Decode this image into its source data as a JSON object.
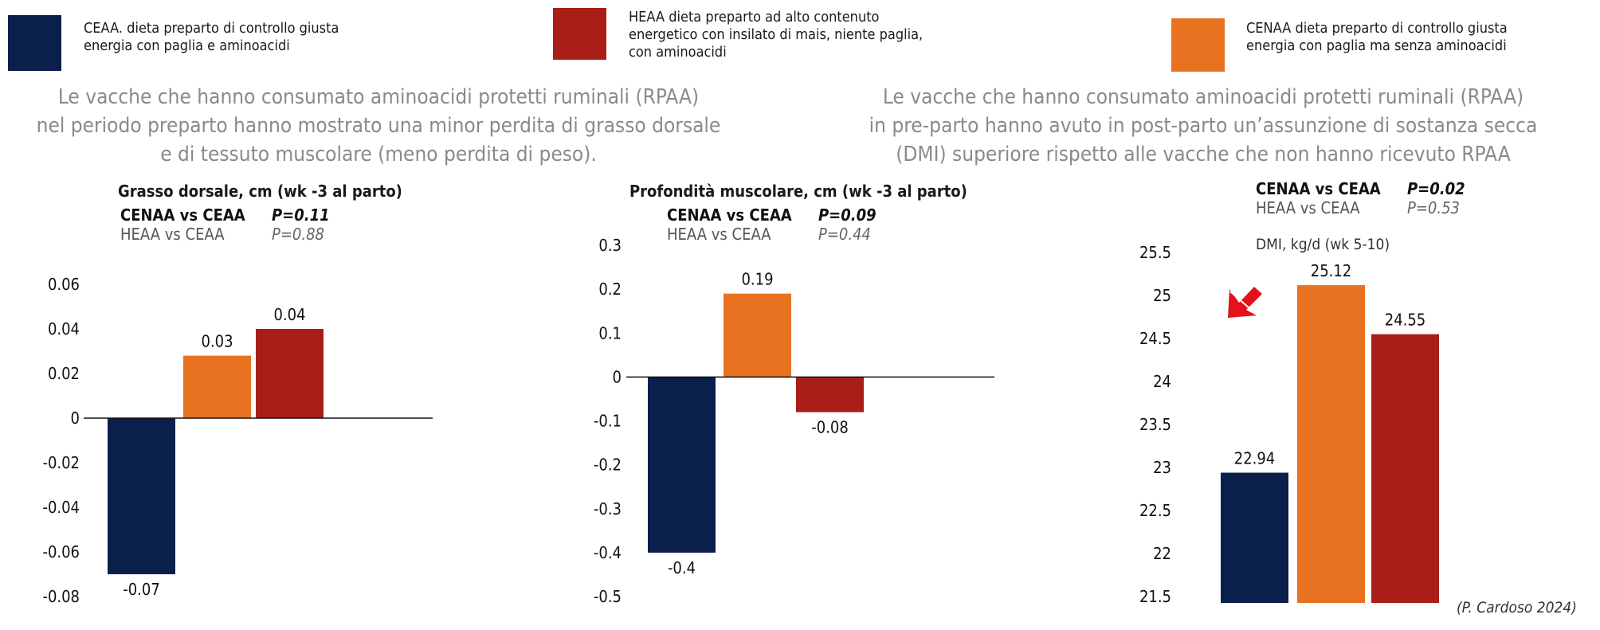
{
  "colors": {
    "navy": "#0b1f4d",
    "orange": "#e8721f",
    "red": "#a91e16"
  },
  "legend": [
    {
      "key": "CEAA",
      "text_line1": "CEAA. dieta preparto di controllo giusta",
      "text_line2": "energia con paglia e aminoacidi",
      "text_line3": "",
      "color": "#0b1f4d"
    },
    {
      "key": "HEAA",
      "text_line1": "HEAA dieta preparto ad alto contenuto",
      "text_line2": "energetico con insilato di mais, niente paglia,",
      "text_line3": "con aminoacidi",
      "color": "#a91e16"
    },
    {
      "key": "CENAA",
      "text_line1": "CENAA dieta preparto di controllo giusta",
      "text_line2": "energia con paglia ma senza aminoacidi",
      "text_line3": "",
      "color": "#e8721f"
    }
  ],
  "headlines": {
    "left": {
      "line1": "Le vacche che hanno consumato aminoacidi protetti ruminali (RPAA)",
      "line2": "nel periodo preparto hanno mostrato una minor perdita di grasso dorsale",
      "line3": "e di tessuto muscolare (meno perdita di peso)."
    },
    "right": {
      "line1": "Le vacche che hanno consumato aminoacidi protetti ruminali (RPAA)",
      "line2": "in pre-parto hanno avuto in post-parto un’assunzione di sostanza secca",
      "line3": "(DMI) superiore rispetto alle vacche che non hanno ricevuto RPAA"
    }
  },
  "chart_data": [
    {
      "type": "bar",
      "title": "Grasso dorsale, cm (wk -3 al parto)",
      "stats": [
        {
          "comparison": "CENAA vs CEAA",
          "p": "P=0.11",
          "significant": true
        },
        {
          "comparison": "HEAA vs CEAA",
          "p": "P=0.88",
          "significant": false
        }
      ],
      "categories": [
        "CEAA",
        "CENAA",
        "HEAA"
      ],
      "values": [
        -0.07,
        0.028,
        0.04
      ],
      "labels": [
        "-0.07",
        "0.03",
        "0.04"
      ],
      "colors": [
        "#0b1f4d",
        "#e8721f",
        "#a91e16"
      ],
      "ylim": [
        -0.08,
        0.06
      ],
      "ticks": [
        0.06,
        0.04,
        0.02,
        0,
        -0.02,
        -0.04,
        -0.06,
        -0.08
      ],
      "tick_labels": [
        "0.06",
        "0.04",
        "0.02",
        "0",
        "-0.02",
        "-0.04",
        "-0.06",
        "-0.08"
      ]
    },
    {
      "type": "bar",
      "title": "Profondità muscolare, cm (wk -3 al parto)",
      "stats": [
        {
          "comparison": "CENAA vs CEAA",
          "p": "P=0.09",
          "significant": true
        },
        {
          "comparison": "HEAA vs CEAA",
          "p": "P=0.44",
          "significant": false
        }
      ],
      "categories": [
        "CEAA",
        "CENAA",
        "HEAA"
      ],
      "values": [
        -0.4,
        0.19,
        -0.08
      ],
      "labels": [
        "-0.4",
        "0.19",
        "-0.08"
      ],
      "colors": [
        "#0b1f4d",
        "#e8721f",
        "#a91e16"
      ],
      "ylim": [
        -0.5,
        0.3
      ],
      "ticks": [
        0.3,
        0.2,
        0.1,
        0,
        -0.1,
        -0.2,
        -0.3,
        -0.4,
        -0.5
      ],
      "tick_labels": [
        "0.3",
        "0.2",
        "0.1",
        "0",
        "-0.1",
        "-0.2",
        "-0.3",
        "-0.4",
        "-0.5"
      ]
    },
    {
      "type": "bar",
      "title": "",
      "ylabel": "DMI, kg/d (wk 5-10)",
      "stats": [
        {
          "comparison": "CENAA vs CEAA",
          "p": "P=0.02",
          "significant": true
        },
        {
          "comparison": "HEAA vs CEAA",
          "p": "P=0.53",
          "significant": false
        }
      ],
      "categories": [
        "CEAA",
        "CENAA",
        "HEAA"
      ],
      "values": [
        22.94,
        25.12,
        24.55
      ],
      "labels": [
        "22.94",
        "25.12",
        "24.55"
      ],
      "colors": [
        "#0b1f4d",
        "#e8721f",
        "#a91e16"
      ],
      "ylim": [
        21.5,
        25.5
      ],
      "ticks": [
        25.5,
        25,
        24.5,
        24,
        23.5,
        23,
        22.5,
        22,
        21.5
      ],
      "tick_labels": [
        "25.5",
        "25",
        "24.5",
        "24",
        "23.5",
        "23",
        "22.5",
        "22",
        "21.5"
      ],
      "annotation": "red-arrow"
    }
  ],
  "source": "(P. Cardoso 2024)"
}
